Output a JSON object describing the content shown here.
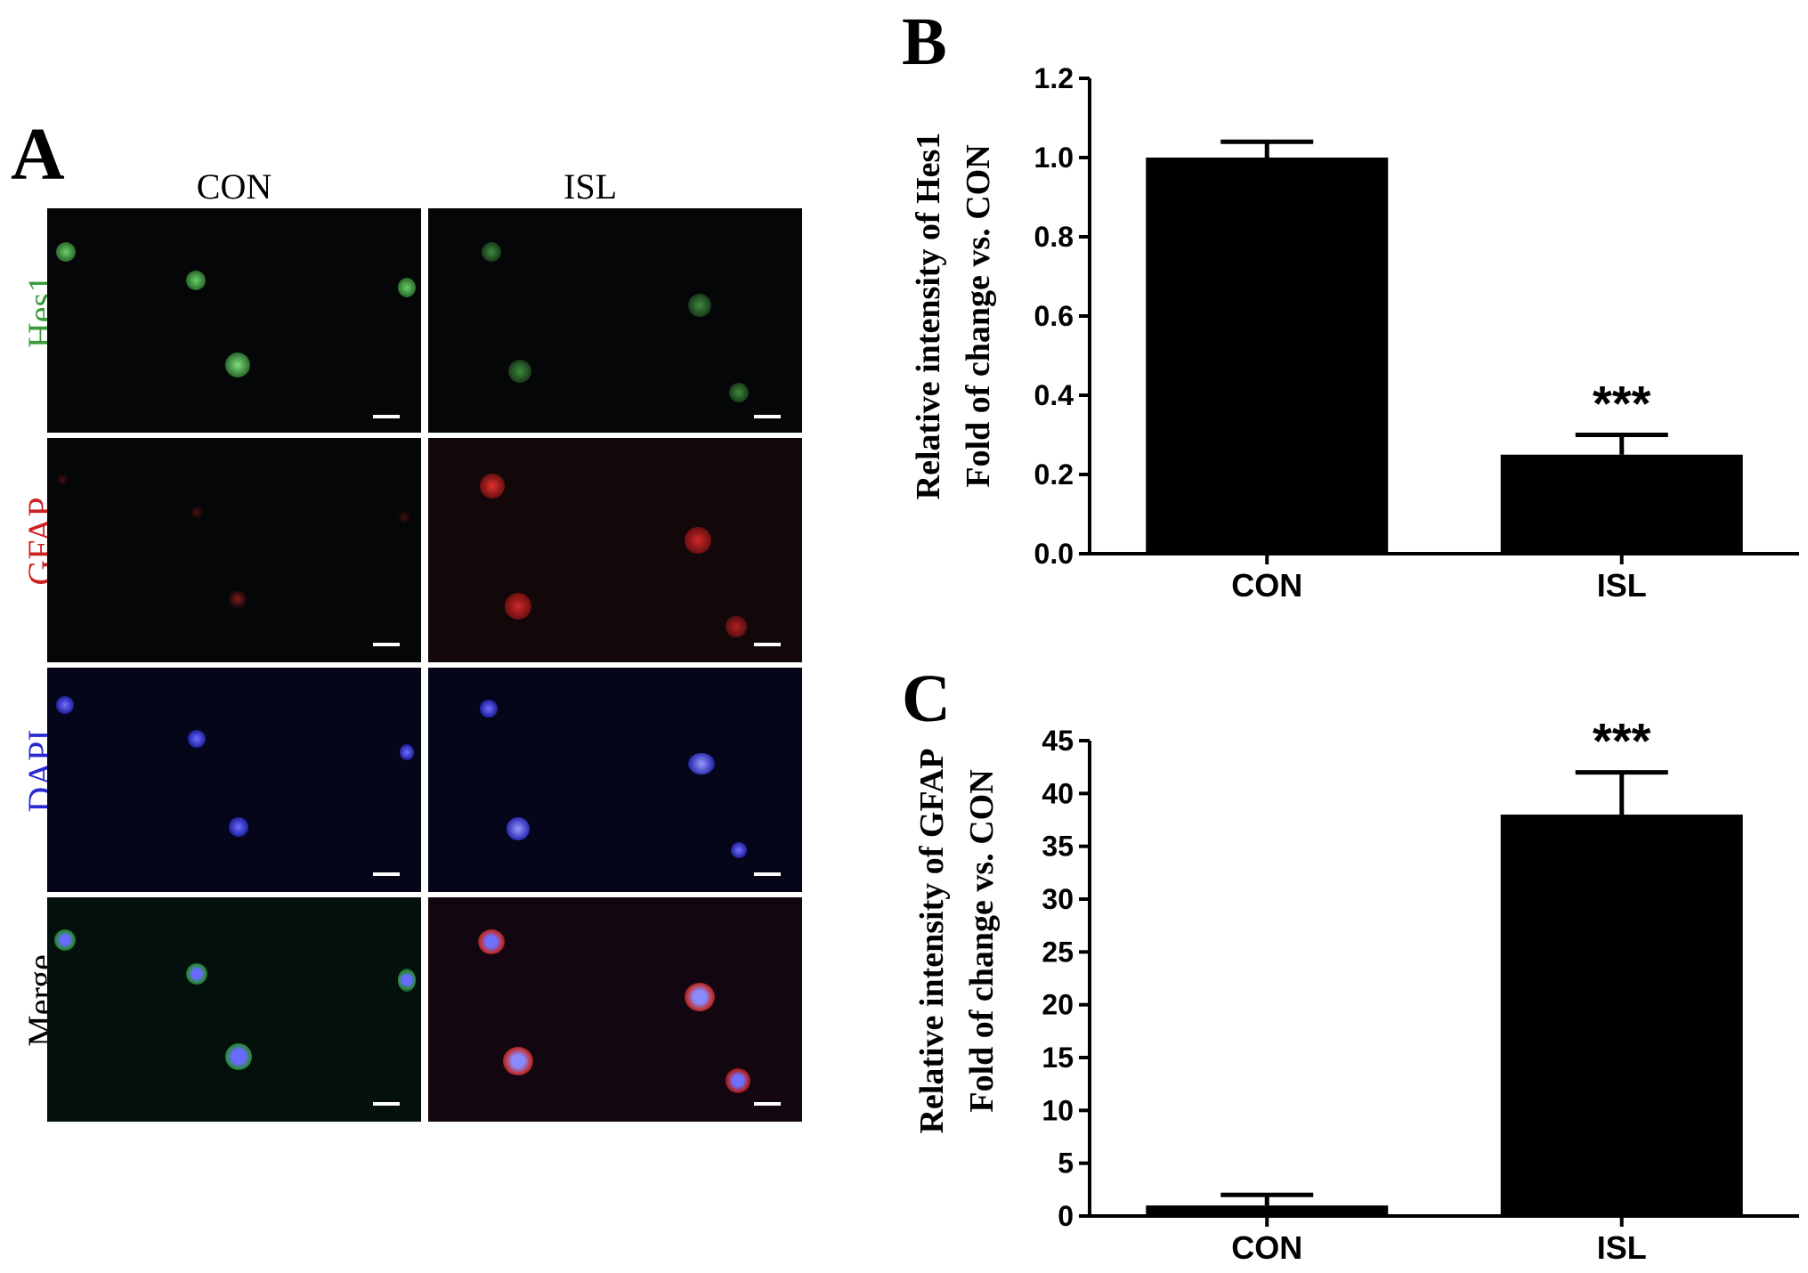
{
  "panel_a": {
    "letter": "A",
    "columns": [
      "CON",
      "ISL"
    ],
    "rows": [
      {
        "label": "Hes1",
        "color": "#3a9a3a"
      },
      {
        "label": "GFAP",
        "color": "#cc2222"
      },
      {
        "label": "DAPI",
        "color": "#2a2ad0"
      },
      {
        "label": "Merge",
        "color": "#000000"
      }
    ]
  },
  "chart_data": [
    {
      "letter": "B",
      "type": "bar",
      "categories": [
        "CON",
        "ISL"
      ],
      "values": [
        1.0,
        0.25
      ],
      "errors": [
        0.04,
        0.05
      ],
      "annotations": [
        "",
        "***"
      ],
      "ylabel_line1": "Relative intensity of  Hes1",
      "ylabel_line2": "Fold of change vs. CON",
      "ylim": [
        0,
        1.2
      ],
      "yticks": [
        "0.0",
        "0.2",
        "0.4",
        "0.6",
        "0.8",
        "1.0",
        "1.2"
      ],
      "bar_color": "#000000"
    },
    {
      "letter": "C",
      "type": "bar",
      "categories": [
        "CON",
        "ISL"
      ],
      "values": [
        1.0,
        38.0
      ],
      "errors": [
        1.0,
        4.0
      ],
      "annotations": [
        "",
        "***"
      ],
      "ylabel_line1": "Relative intensity of  GFAP",
      "ylabel_line2": "Fold of change vs. CON",
      "ylim": [
        0,
        45
      ],
      "yticks": [
        "0",
        "5",
        "10",
        "15",
        "20",
        "25",
        "30",
        "35",
        "40",
        "45"
      ],
      "bar_color": "#000000"
    }
  ]
}
